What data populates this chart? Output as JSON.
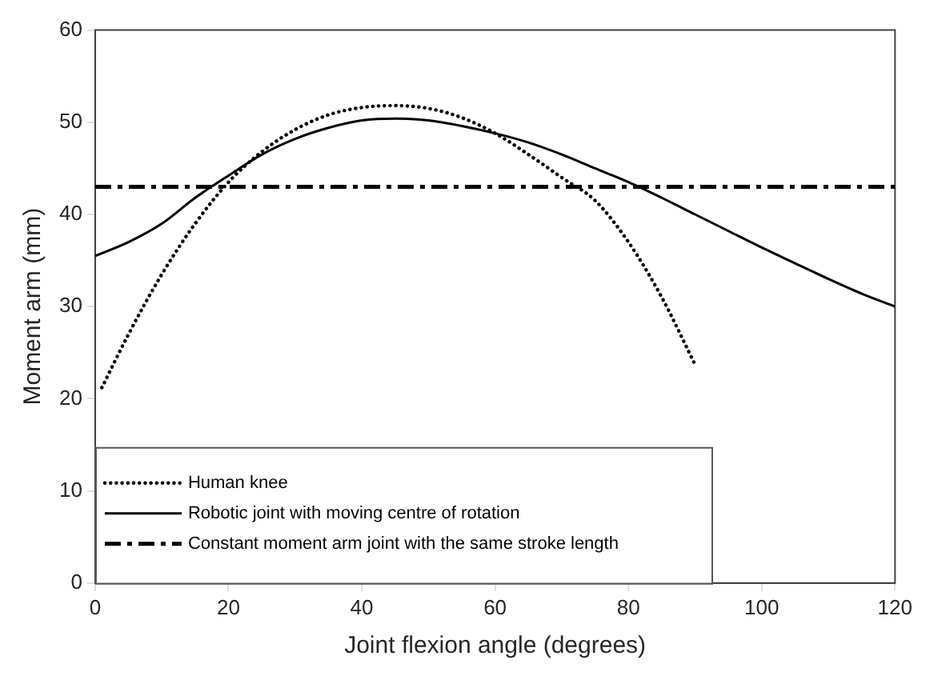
{
  "chart_data": {
    "type": "line",
    "xlabel": "Joint flexion angle (degrees)",
    "ylabel": "Moment arm (mm)",
    "xlim": [
      0,
      120
    ],
    "xticks": [
      0,
      20,
      40,
      60,
      80,
      100,
      120
    ],
    "ylim": [
      0,
      60
    ],
    "yticks": [
      0,
      10,
      20,
      30,
      40,
      50,
      60
    ],
    "grid": false,
    "legend": "bottom left",
    "marker": "none",
    "series": [
      {
        "name": "Human knee",
        "color": "#000000",
        "line_style": "dotted",
        "x": [
          1,
          5,
          10,
          15,
          20,
          25,
          30,
          35,
          40,
          45,
          50,
          55,
          60,
          65,
          70,
          75,
          80,
          85,
          90
        ],
        "values": [
          21.2,
          27,
          33.5,
          39,
          43.5,
          46.8,
          49.2,
          50.8,
          51.6,
          51.8,
          51.5,
          50.5,
          48.8,
          46.5,
          44,
          41.5,
          37,
          31,
          23.7
        ]
      },
      {
        "name": "Robotic joint with moving centre of rotation",
        "color": "#000000",
        "line_style": "solid",
        "x": [
          0,
          5,
          10,
          15,
          20,
          25,
          30,
          35,
          40,
          45,
          50,
          55,
          60,
          65,
          70,
          75,
          80,
          85,
          90,
          95,
          100,
          105,
          110,
          115,
          120
        ],
        "values": [
          35.5,
          37,
          39,
          41.8,
          44.2,
          46.5,
          48.2,
          49.4,
          50.2,
          50.4,
          50.2,
          49.6,
          48.8,
          47.8,
          46.5,
          45,
          43.5,
          41.8,
          40,
          38.2,
          36.4,
          34.7,
          33,
          31.4,
          30
        ]
      },
      {
        "name": "Constant moment arm joint with the same stroke length",
        "color": "#000000",
        "line_style": "dashed",
        "x": [
          0,
          120
        ],
        "values": [
          43,
          43
        ]
      }
    ]
  }
}
